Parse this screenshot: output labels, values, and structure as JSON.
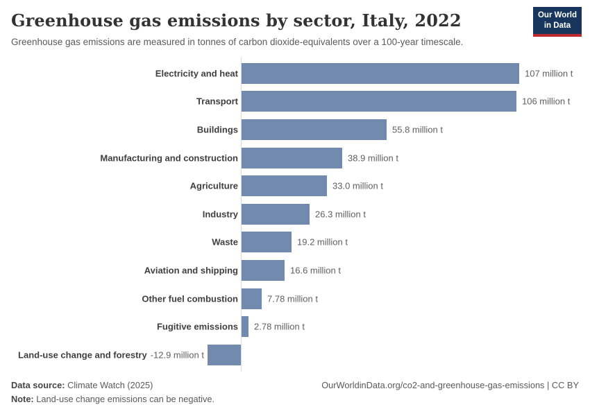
{
  "header": {
    "title": "Greenhouse gas emissions by sector, Italy, 2022",
    "subtitle": "Greenhouse gas emissions are measured in tonnes of carbon dioxide-equivalents over a 100-year timescale.",
    "logo": {
      "line1": "Our World",
      "line2": "in Data"
    }
  },
  "chart_data": {
    "type": "bar",
    "orientation": "horizontal",
    "title": "Greenhouse gas emissions by sector, Italy, 2022",
    "xlabel": "",
    "ylabel": "",
    "unit": "million t",
    "xlim": [
      -12.9,
      107
    ],
    "grid": false,
    "legend": "none",
    "categories": [
      "Electricity and heat",
      "Transport",
      "Buildings",
      "Manufacturing and construction",
      "Agriculture",
      "Industry",
      "Waste",
      "Aviation and shipping",
      "Other fuel combustion",
      "Fugitive emissions",
      "Land-use change and forestry"
    ],
    "values": [
      107,
      106,
      55.8,
      38.9,
      33.0,
      26.3,
      19.2,
      16.6,
      7.78,
      2.78,
      -12.9
    ],
    "value_labels": [
      "107 million t",
      "106 million t",
      "55.8 million t",
      "38.9 million t",
      "33.0 million t",
      "26.3 million t",
      "19.2 million t",
      "16.6 million t",
      "7.78 million t",
      "2.78 million t",
      "-12.9 million t"
    ]
  },
  "footer": {
    "source_label": "Data source:",
    "source_value": " Climate Watch (2025)",
    "note_label": "Note:",
    "note_value": " Land-use change emissions can be negative.",
    "credit": "OurWorldinData.org/co2-and-greenhouse-gas-emissions | CC BY"
  },
  "colors": {
    "bar": "#738aaf",
    "axis": "#d9d9d9",
    "logo_bg": "#18365d",
    "logo_accent": "#c0282f"
  }
}
